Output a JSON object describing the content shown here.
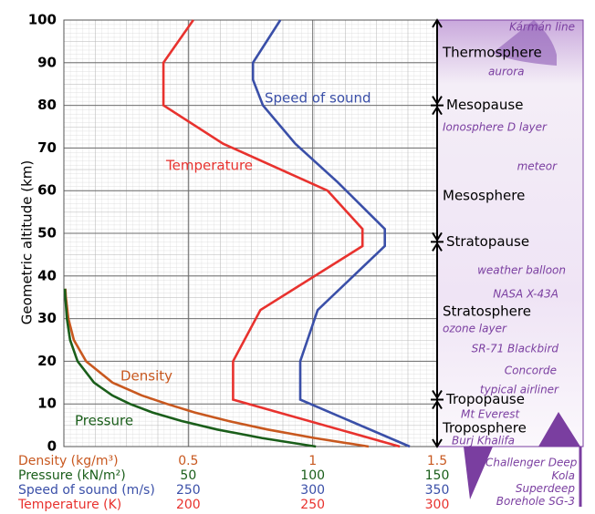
{
  "chart_data": {
    "type": "line",
    "y_label": "Geometric altitude (km)",
    "ylim": [
      0,
      100
    ],
    "yticks": [
      0,
      10,
      20,
      30,
      40,
      50,
      60,
      70,
      80,
      90,
      100
    ],
    "grid": true,
    "series": [
      {
        "name": "Density",
        "axis_label": "Density (kg/m³)",
        "color": "#c8581f",
        "xlim": [
          0,
          1.5
        ],
        "xticks": [
          0.5,
          1,
          1.5
        ],
        "x": [
          1.225,
          1.007,
          0.819,
          0.66,
          0.526,
          0.414,
          0.312,
          0.195,
          0.089,
          0.04,
          0.018,
          0.008,
          0.006
        ],
        "y": [
          0,
          2,
          4,
          6,
          8,
          10,
          12,
          15,
          20,
          25,
          30,
          35,
          37
        ]
      },
      {
        "name": "Pressure",
        "axis_label": "Pressure (kN/m²)",
        "color": "#1a5e1a",
        "xlim": [
          0,
          150
        ],
        "xticks": [
          50,
          100,
          150
        ],
        "x": [
          101.3,
          79.5,
          61.6,
          47.2,
          35.6,
          26.5,
          19.4,
          12.1,
          5.5,
          2.5,
          1.2,
          0.57,
          0.4
        ],
        "y": [
          0,
          2,
          4,
          6,
          8,
          10,
          12,
          15,
          20,
          25,
          30,
          35,
          37
        ]
      },
      {
        "name": "Speed of sound",
        "axis_label": "Speed of sound (m/s)",
        "color": "#3a4fa8",
        "xlim": [
          200,
          350
        ],
        "xticks": [
          250,
          300,
          350
        ],
        "x": [
          339,
          295,
          295,
          302,
          329,
          329,
          310,
          293,
          280,
          276,
          276,
          287
        ],
        "y": [
          0,
          11,
          20,
          32,
          47,
          51,
          62,
          71,
          80,
          86,
          90,
          100
        ]
      },
      {
        "name": "Temperature",
        "axis_label": "Temperature (K)",
        "color": "#e8322e",
        "xlim": [
          150,
          300
        ],
        "xticks": [
          200,
          250,
          300
        ],
        "x": [
          285,
          218,
          218,
          229,
          270,
          270,
          256,
          214,
          190,
          190,
          190,
          202
        ],
        "y": [
          0,
          11,
          20,
          32,
          47,
          51,
          60,
          71,
          80,
          86,
          90,
          100
        ]
      }
    ],
    "layers": [
      "Thermosphere",
      "Mesosphere",
      "Stratosphere",
      "Troposphere"
    ],
    "boundaries": [
      {
        "name": "Mesopause",
        "altitude": 80
      },
      {
        "name": "Stratopause",
        "altitude": 48
      },
      {
        "name": "Tropopause",
        "altitude": 11
      }
    ],
    "annotations": [
      "Kármán line",
      "aurora",
      "Ionosphere D layer",
      "meteor",
      "weather balloon",
      "NASA X-43A",
      "ozone layer",
      "SR-71 Blackbird",
      "Concorde",
      "typical airliner",
      "Mt Everest",
      "Burj Khalifa",
      "Challenger Deep",
      "Kola Superdeep Borehole SG-3"
    ]
  }
}
